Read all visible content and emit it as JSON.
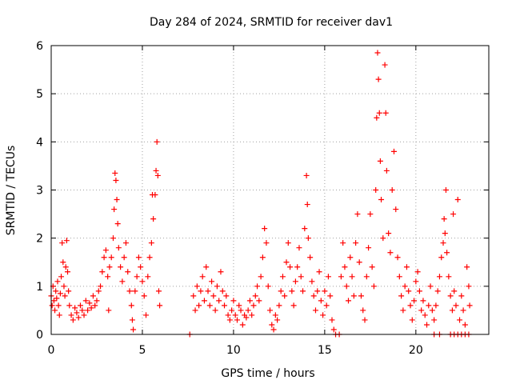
{
  "chart_data": {
    "type": "scatter",
    "title": "Day 284 of 2024, SRMTID for receiver dav1",
    "xlabel": "GPS time / hours",
    "ylabel": "SRMTID / TECUs",
    "xlim": [
      0,
      24
    ],
    "ylim": [
      0,
      6
    ],
    "xticks": [
      "0",
      "5",
      "10",
      "15",
      "20"
    ],
    "xtick_values": [
      0,
      5,
      10,
      15,
      20
    ],
    "yticks": [
      "0",
      "1",
      "2",
      "3",
      "4",
      "5",
      "6"
    ],
    "ytick_values": [
      0,
      1,
      2,
      3,
      4,
      5,
      6
    ],
    "grid": true,
    "marker": "+",
    "marker_color": "#ff0000",
    "series": [
      {
        "name": "dav1",
        "points": [
          [
            0.0,
            0.8
          ],
          [
            0.05,
            0.6
          ],
          [
            0.1,
            1.0
          ],
          [
            0.15,
            0.7
          ],
          [
            0.2,
            0.5
          ],
          [
            0.25,
            0.9
          ],
          [
            0.3,
            0.75
          ],
          [
            0.35,
            1.1
          ],
          [
            0.4,
            0.6
          ],
          [
            0.45,
            0.4
          ],
          [
            0.5,
            0.85
          ],
          [
            0.55,
            1.2
          ],
          [
            0.6,
            1.9
          ],
          [
            0.65,
            1.5
          ],
          [
            0.7,
            1.0
          ],
          [
            0.75,
            0.8
          ],
          [
            0.8,
            1.4
          ],
          [
            0.85,
            1.95
          ],
          [
            0.9,
            1.3
          ],
          [
            0.95,
            0.9
          ],
          [
            1.0,
            0.6
          ],
          [
            1.1,
            0.4
          ],
          [
            1.2,
            0.3
          ],
          [
            1.3,
            0.55
          ],
          [
            1.4,
            0.45
          ],
          [
            1.5,
            0.35
          ],
          [
            1.6,
            0.6
          ],
          [
            1.7,
            0.5
          ],
          [
            1.8,
            0.4
          ],
          [
            1.9,
            0.7
          ],
          [
            2.0,
            0.5
          ],
          [
            2.1,
            0.65
          ],
          [
            2.2,
            0.55
          ],
          [
            2.3,
            0.8
          ],
          [
            2.4,
            0.6
          ],
          [
            2.5,
            0.7
          ],
          [
            2.6,
            0.9
          ],
          [
            2.7,
            1.0
          ],
          [
            2.8,
            1.3
          ],
          [
            2.9,
            1.6
          ],
          [
            3.0,
            1.75
          ],
          [
            3.1,
            1.2
          ],
          [
            3.15,
            0.5
          ],
          [
            3.2,
            1.4
          ],
          [
            3.3,
            1.6
          ],
          [
            3.4,
            2.0
          ],
          [
            3.45,
            2.6
          ],
          [
            3.5,
            3.35
          ],
          [
            3.55,
            3.2
          ],
          [
            3.6,
            2.8
          ],
          [
            3.65,
            2.3
          ],
          [
            3.7,
            1.8
          ],
          [
            3.8,
            1.4
          ],
          [
            3.9,
            1.1
          ],
          [
            4.0,
            1.6
          ],
          [
            4.1,
            1.9
          ],
          [
            4.2,
            1.3
          ],
          [
            4.3,
            0.9
          ],
          [
            4.4,
            0.6
          ],
          [
            4.45,
            0.3
          ],
          [
            4.5,
            0.1
          ],
          [
            4.6,
            0.9
          ],
          [
            4.7,
            1.2
          ],
          [
            4.8,
            1.6
          ],
          [
            4.9,
            1.4
          ],
          [
            5.0,
            1.1
          ],
          [
            5.1,
            0.8
          ],
          [
            5.2,
            0.4
          ],
          [
            5.3,
            1.2
          ],
          [
            5.4,
            1.6
          ],
          [
            5.5,
            1.9
          ],
          [
            5.55,
            2.9
          ],
          [
            5.6,
            2.4
          ],
          [
            5.7,
            2.9
          ],
          [
            5.75,
            3.4
          ],
          [
            5.8,
            4.0
          ],
          [
            5.85,
            3.3
          ],
          [
            5.9,
            0.9
          ],
          [
            5.95,
            0.6
          ],
          [
            7.6,
            0.0
          ],
          [
            7.8,
            0.8
          ],
          [
            7.9,
            0.5
          ],
          [
            8.0,
            1.0
          ],
          [
            8.1,
            0.6
          ],
          [
            8.2,
            0.9
          ],
          [
            8.3,
            1.2
          ],
          [
            8.4,
            0.7
          ],
          [
            8.5,
            1.4
          ],
          [
            8.6,
            0.9
          ],
          [
            8.7,
            0.6
          ],
          [
            8.8,
            1.1
          ],
          [
            8.9,
            0.8
          ],
          [
            9.0,
            0.5
          ],
          [
            9.1,
            1.0
          ],
          [
            9.2,
            0.7
          ],
          [
            9.3,
            1.3
          ],
          [
            9.4,
            0.9
          ],
          [
            9.5,
            0.6
          ],
          [
            9.6,
            0.8
          ],
          [
            9.7,
            0.4
          ],
          [
            9.8,
            0.3
          ],
          [
            9.9,
            0.5
          ],
          [
            10.0,
            0.7
          ],
          [
            10.1,
            0.4
          ],
          [
            10.2,
            0.3
          ],
          [
            10.3,
            0.6
          ],
          [
            10.4,
            0.5
          ],
          [
            10.5,
            0.2
          ],
          [
            10.6,
            0.4
          ],
          [
            10.7,
            0.35
          ],
          [
            10.8,
            0.5
          ],
          [
            10.9,
            0.7
          ],
          [
            11.0,
            0.4
          ],
          [
            11.1,
            0.6
          ],
          [
            11.2,
            0.8
          ],
          [
            11.3,
            1.0
          ],
          [
            11.4,
            0.7
          ],
          [
            11.5,
            1.2
          ],
          [
            11.6,
            1.6
          ],
          [
            11.7,
            2.2
          ],
          [
            11.8,
            1.9
          ],
          [
            11.9,
            1.0
          ],
          [
            12.0,
            0.5
          ],
          [
            12.1,
            0.2
          ],
          [
            12.2,
            0.1
          ],
          [
            12.3,
            0.4
          ],
          [
            12.4,
            0.3
          ],
          [
            12.5,
            0.6
          ],
          [
            12.6,
            0.9
          ],
          [
            12.7,
            1.2
          ],
          [
            12.8,
            0.8
          ],
          [
            12.9,
            1.5
          ],
          [
            13.0,
            1.9
          ],
          [
            13.1,
            1.4
          ],
          [
            13.2,
            0.9
          ],
          [
            13.3,
            0.6
          ],
          [
            13.4,
            1.1
          ],
          [
            13.5,
            1.4
          ],
          [
            13.6,
            1.8
          ],
          [
            13.7,
            1.2
          ],
          [
            13.8,
            0.9
          ],
          [
            13.9,
            2.2
          ],
          [
            14.0,
            3.3
          ],
          [
            14.05,
            2.7
          ],
          [
            14.1,
            2.0
          ],
          [
            14.2,
            1.6
          ],
          [
            14.3,
            1.1
          ],
          [
            14.4,
            0.8
          ],
          [
            14.5,
            0.5
          ],
          [
            14.6,
            0.9
          ],
          [
            14.7,
            1.3
          ],
          [
            14.8,
            0.7
          ],
          [
            14.9,
            0.4
          ],
          [
            15.0,
            0.9
          ],
          [
            15.1,
            0.6
          ],
          [
            15.2,
            1.2
          ],
          [
            15.3,
            0.8
          ],
          [
            15.4,
            0.3
          ],
          [
            15.5,
            0.1
          ],
          [
            15.6,
            0.0
          ],
          [
            15.8,
            0.0
          ],
          [
            15.9,
            1.2
          ],
          [
            16.0,
            1.9
          ],
          [
            16.1,
            1.4
          ],
          [
            16.2,
            1.0
          ],
          [
            16.3,
            0.7
          ],
          [
            16.4,
            1.6
          ],
          [
            16.5,
            1.2
          ],
          [
            16.6,
            0.8
          ],
          [
            16.7,
            1.9
          ],
          [
            16.8,
            2.5
          ],
          [
            16.9,
            1.5
          ],
          [
            17.0,
            0.8
          ],
          [
            17.1,
            0.5
          ],
          [
            17.2,
            0.3
          ],
          [
            17.3,
            1.2
          ],
          [
            17.4,
            1.8
          ],
          [
            17.5,
            2.5
          ],
          [
            17.6,
            1.4
          ],
          [
            17.7,
            1.0
          ],
          [
            17.8,
            3.0
          ],
          [
            17.85,
            4.5
          ],
          [
            17.9,
            5.85
          ],
          [
            17.95,
            5.3
          ],
          [
            18.0,
            4.6
          ],
          [
            18.05,
            3.6
          ],
          [
            18.1,
            2.8
          ],
          [
            18.2,
            2.0
          ],
          [
            18.3,
            5.6
          ],
          [
            18.35,
            4.6
          ],
          [
            18.4,
            3.4
          ],
          [
            18.5,
            2.1
          ],
          [
            18.6,
            1.7
          ],
          [
            18.7,
            3.0
          ],
          [
            18.8,
            3.8
          ],
          [
            18.9,
            2.6
          ],
          [
            19.0,
            1.6
          ],
          [
            19.1,
            1.2
          ],
          [
            19.2,
            0.8
          ],
          [
            19.3,
            0.5
          ],
          [
            19.4,
            1.0
          ],
          [
            19.5,
            1.4
          ],
          [
            19.6,
            0.9
          ],
          [
            19.7,
            0.6
          ],
          [
            19.8,
            0.3
          ],
          [
            19.9,
            0.7
          ],
          [
            20.0,
            1.1
          ],
          [
            20.1,
            1.3
          ],
          [
            20.2,
            0.9
          ],
          [
            20.3,
            0.5
          ],
          [
            20.4,
            0.7
          ],
          [
            20.5,
            0.4
          ],
          [
            20.6,
            0.2
          ],
          [
            20.7,
            0.6
          ],
          [
            20.8,
            1.0
          ],
          [
            20.9,
            0.5
          ],
          [
            21.0,
            0.3
          ],
          [
            21.1,
            0.6
          ],
          [
            21.2,
            0.9
          ],
          [
            21.3,
            1.2
          ],
          [
            21.4,
            1.6
          ],
          [
            21.5,
            1.9
          ],
          [
            21.55,
            2.4
          ],
          [
            21.6,
            2.1
          ],
          [
            21.65,
            3.0
          ],
          [
            21.7,
            1.7
          ],
          [
            21.8,
            1.2
          ],
          [
            21.9,
            0.8
          ],
          [
            22.0,
            0.5
          ],
          [
            22.05,
            2.5
          ],
          [
            22.1,
            0.9
          ],
          [
            22.2,
            0.6
          ],
          [
            22.3,
            2.8
          ],
          [
            22.4,
            0.3
          ],
          [
            22.5,
            0.8
          ],
          [
            22.6,
            0.5
          ],
          [
            22.7,
            0.2
          ],
          [
            22.8,
            1.4
          ],
          [
            22.9,
            1.0
          ],
          [
            22.95,
            0.6
          ],
          [
            21.0,
            0.0
          ],
          [
            21.3,
            0.0
          ],
          [
            21.9,
            0.0
          ],
          [
            22.1,
            0.0
          ],
          [
            22.3,
            0.0
          ],
          [
            22.5,
            0.0
          ],
          [
            22.7,
            0.0
          ],
          [
            22.9,
            0.0
          ]
        ]
      }
    ]
  }
}
